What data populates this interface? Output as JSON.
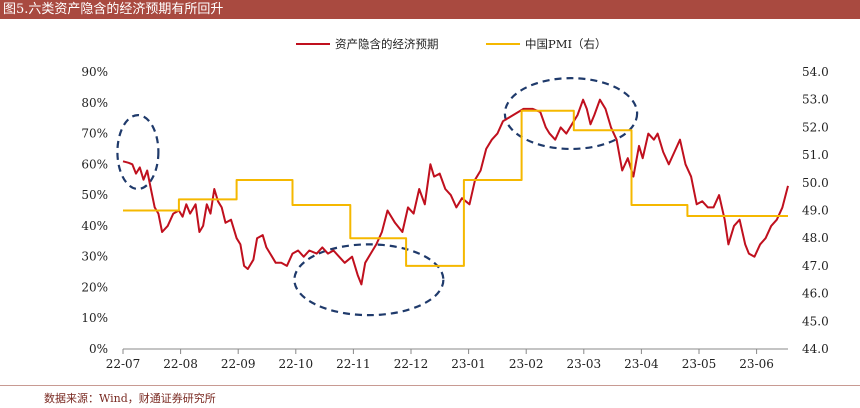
{
  "header": {
    "title": "图5.六类资产隐含的经济预期有所回升"
  },
  "footer": {
    "source": "数据来源：Wind，财通证券研究所"
  },
  "colors": {
    "title_bg": "#a94a40",
    "series_asset": "#c0101e",
    "series_pmi": "#f5b800",
    "ellipse": "#1f3a6b"
  },
  "chart_data": {
    "type": "line",
    "x_ticks": [
      "22-07",
      "22-08",
      "22-09",
      "22-10",
      "22-11",
      "22-12",
      "23-01",
      "23-02",
      "23-03",
      "23-04",
      "23-05",
      "23-06"
    ],
    "x_range": [
      "2022-07-01",
      "2023-06-23"
    ],
    "y_left": {
      "ticks": [
        "0%",
        "10%",
        "20%",
        "30%",
        "40%",
        "50%",
        "60%",
        "70%",
        "80%",
        "90%"
      ],
      "range": [
        0,
        90
      ]
    },
    "y_right": {
      "ticks": [
        "44.0",
        "45.0",
        "46.0",
        "47.0",
        "48.0",
        "49.0",
        "50.0",
        "51.0",
        "52.0",
        "53.0",
        "54.0"
      ],
      "range": [
        44,
        54
      ]
    },
    "legend_position": "top-center",
    "series": [
      {
        "name": "资产隐含的经济预期",
        "axis": "left",
        "points": [
          [
            "2022-07-01",
            61
          ],
          [
            "2022-07-04",
            60.5
          ],
          [
            "2022-07-06",
            60
          ],
          [
            "2022-07-08",
            57
          ],
          [
            "2022-07-10",
            59
          ],
          [
            "2022-07-12",
            55
          ],
          [
            "2022-07-14",
            58
          ],
          [
            "2022-07-16",
            52
          ],
          [
            "2022-07-18",
            46
          ],
          [
            "2022-07-20",
            44
          ],
          [
            "2022-07-22",
            38
          ],
          [
            "2022-07-25",
            40
          ],
          [
            "2022-07-28",
            44
          ],
          [
            "2022-07-31",
            45
          ],
          [
            "2022-08-02",
            43
          ],
          [
            "2022-08-04",
            47
          ],
          [
            "2022-08-06",
            44
          ],
          [
            "2022-08-09",
            47
          ],
          [
            "2022-08-11",
            38
          ],
          [
            "2022-08-13",
            40
          ],
          [
            "2022-08-15",
            47
          ],
          [
            "2022-08-17",
            44
          ],
          [
            "2022-08-19",
            52
          ],
          [
            "2022-08-21",
            48
          ],
          [
            "2022-08-23",
            46
          ],
          [
            "2022-08-25",
            41
          ],
          [
            "2022-08-28",
            42
          ],
          [
            "2022-08-31",
            36
          ],
          [
            "2022-09-02",
            34
          ],
          [
            "2022-09-04",
            27
          ],
          [
            "2022-09-06",
            26
          ],
          [
            "2022-09-09",
            29
          ],
          [
            "2022-09-11",
            36
          ],
          [
            "2022-09-14",
            37
          ],
          [
            "2022-09-16",
            33
          ],
          [
            "2022-09-18",
            31
          ],
          [
            "2022-09-21",
            28
          ],
          [
            "2022-09-24",
            28
          ],
          [
            "2022-09-27",
            27
          ],
          [
            "2022-09-30",
            31
          ],
          [
            "2022-10-03",
            32
          ],
          [
            "2022-10-06",
            30
          ],
          [
            "2022-10-09",
            32
          ],
          [
            "2022-10-13",
            31
          ],
          [
            "2022-10-16",
            33
          ],
          [
            "2022-10-19",
            31
          ],
          [
            "2022-10-22",
            32
          ],
          [
            "2022-10-25",
            30
          ],
          [
            "2022-10-28",
            28
          ],
          [
            "2022-11-01",
            30
          ],
          [
            "2022-11-04",
            24
          ],
          [
            "2022-11-06",
            21
          ],
          [
            "2022-11-08",
            28
          ],
          [
            "2022-11-11",
            31
          ],
          [
            "2022-11-14",
            34
          ],
          [
            "2022-11-17",
            38
          ],
          [
            "2022-11-20",
            45
          ],
          [
            "2022-11-24",
            41
          ],
          [
            "2022-11-28",
            38
          ],
          [
            "2022-12-01",
            46
          ],
          [
            "2022-12-04",
            44
          ],
          [
            "2022-12-07",
            52
          ],
          [
            "2022-12-10",
            47
          ],
          [
            "2022-12-13",
            60
          ],
          [
            "2022-12-15",
            56
          ],
          [
            "2022-12-18",
            57
          ],
          [
            "2022-12-21",
            52
          ],
          [
            "2022-12-24",
            50
          ],
          [
            "2022-12-27",
            46
          ],
          [
            "2022-12-30",
            49
          ],
          [
            "2023-01-03",
            47
          ],
          [
            "2023-01-06",
            55
          ],
          [
            "2023-01-09",
            58
          ],
          [
            "2023-01-12",
            65
          ],
          [
            "2023-01-15",
            68
          ],
          [
            "2023-01-18",
            70
          ],
          [
            "2023-01-21",
            74
          ],
          [
            "2023-02-01",
            78
          ],
          [
            "2023-02-06",
            78
          ],
          [
            "2023-02-10",
            77
          ],
          [
            "2023-02-13",
            72
          ],
          [
            "2023-02-15",
            70
          ],
          [
            "2023-02-18",
            68
          ],
          [
            "2023-02-21",
            72
          ],
          [
            "2023-02-24",
            70
          ],
          [
            "2023-02-28",
            74
          ],
          [
            "2023-03-02",
            76
          ],
          [
            "2023-03-05",
            81
          ],
          [
            "2023-03-07",
            78
          ],
          [
            "2023-03-09",
            73
          ],
          [
            "2023-03-11",
            76
          ],
          [
            "2023-03-14",
            81
          ],
          [
            "2023-03-17",
            78
          ],
          [
            "2023-03-20",
            72
          ],
          [
            "2023-03-23",
            68
          ],
          [
            "2023-03-26",
            58
          ],
          [
            "2023-03-29",
            62
          ],
          [
            "2023-04-01",
            56
          ],
          [
            "2023-04-04",
            66
          ],
          [
            "2023-04-06",
            62
          ],
          [
            "2023-04-09",
            70
          ],
          [
            "2023-04-12",
            68
          ],
          [
            "2023-04-14",
            70
          ],
          [
            "2023-04-17",
            64
          ],
          [
            "2023-04-20",
            60
          ],
          [
            "2023-04-23",
            64
          ],
          [
            "2023-04-26",
            68
          ],
          [
            "2023-04-29",
            60
          ],
          [
            "2023-05-02",
            56
          ],
          [
            "2023-05-05",
            47
          ],
          [
            "2023-05-08",
            48
          ],
          [
            "2023-05-11",
            46
          ],
          [
            "2023-05-14",
            46
          ],
          [
            "2023-05-17",
            50
          ],
          [
            "2023-05-20",
            42
          ],
          [
            "2023-05-22",
            34
          ],
          [
            "2023-05-25",
            40
          ],
          [
            "2023-05-28",
            42
          ],
          [
            "2023-05-31",
            34
          ],
          [
            "2023-06-02",
            31
          ],
          [
            "2023-06-05",
            30
          ],
          [
            "2023-06-08",
            34
          ],
          [
            "2023-06-11",
            36
          ],
          [
            "2023-06-14",
            40
          ],
          [
            "2023-06-17",
            42
          ],
          [
            "2023-06-20",
            46
          ],
          [
            "2023-06-23",
            53
          ]
        ]
      },
      {
        "name": "中国PMI（右）",
        "axis": "right",
        "step": true,
        "points": [
          [
            "2022-07-01",
            49.0
          ],
          [
            "2022-07-31",
            49.4
          ],
          [
            "2022-08-31",
            50.1
          ],
          [
            "2022-09-30",
            49.2
          ],
          [
            "2022-10-31",
            48.0
          ],
          [
            "2022-11-30",
            47.0
          ],
          [
            "2022-12-31",
            50.1
          ],
          [
            "2023-01-31",
            52.6
          ],
          [
            "2023-02-28",
            51.9
          ],
          [
            "2023-03-31",
            49.2
          ],
          [
            "2023-04-30",
            48.8
          ],
          [
            "2023-05-31",
            48.8
          ],
          [
            "2023-06-23",
            48.8
          ]
        ]
      }
    ],
    "highlight_ellipses": [
      {
        "from": "2022-06-28",
        "to": "2022-07-20",
        "y_from": 52,
        "y_to": 76
      },
      {
        "from": "2022-10-01",
        "to": "2022-12-20",
        "y_from": 11,
        "y_to": 34
      },
      {
        "from": "2023-01-22",
        "to": "2023-04-03",
        "y_from": 65,
        "y_to": 88
      }
    ]
  }
}
